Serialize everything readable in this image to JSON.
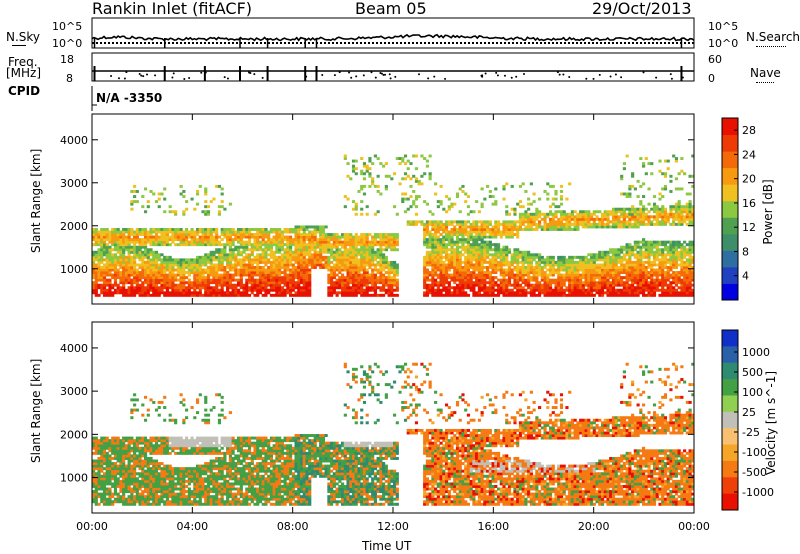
{
  "header": {
    "station": "Rankin Inlet (fitACF)",
    "beam": "Beam 05",
    "date": "29/Oct/2013"
  },
  "noise_panel": {
    "left_label": "N.Sky",
    "right_label": "N.Search",
    "left_ticks": [
      "10^5",
      "10^0"
    ],
    "right_ticks": [
      "10^5",
      "10^0"
    ]
  },
  "freq_panel": {
    "left_label_line1": "Freq.",
    "left_label_line2": "[MHz]",
    "left_ticks": [
      "18",
      "8"
    ],
    "right_ticks": [
      "60",
      "0"
    ],
    "right_label": "Nave"
  },
  "cpid_panel": {
    "label": "CPID",
    "value": "N/A  -3350"
  },
  "colors": {
    "power": [
      "#0000e0",
      "#2040c0",
      "#2e6ea0",
      "#3e8e6a",
      "#4fa050",
      "#8cc840",
      "#f0c020",
      "#f89a10",
      "#f56a08",
      "#ee3a05",
      "#e81000"
    ],
    "velocity_scale": [
      "#e81000",
      "#f0400a",
      "#f57a14",
      "#f5a528",
      "#f8c070",
      "#c0c0b8",
      "#90d050",
      "#44a045",
      "#2e8a70",
      "#2a60a8",
      "#1030c8"
    ]
  },
  "chart_data": [
    {
      "type": "heatmap",
      "title": "",
      "xlabel": "",
      "ylabel": "Slant Range [km]",
      "x_ticks": [
        "00:00",
        "04:00",
        "08:00",
        "12:00",
        "16:00",
        "20:00",
        "00:00"
      ],
      "y_ticks": [
        "1000",
        "2000",
        "3000",
        "4000"
      ],
      "xlim": [
        0,
        24
      ],
      "ylim": [
        180,
        4600
      ],
      "colorbar": {
        "label": "Power [dB]",
        "ticks": [
          "4",
          "8",
          "12",
          "16",
          "20",
          "24",
          "28"
        ],
        "range": [
          0,
          30
        ]
      }
    },
    {
      "type": "heatmap",
      "title": "",
      "xlabel": "Time UT",
      "ylabel": "Slant Range [km]",
      "x_ticks": [
        "00:00",
        "04:00",
        "08:00",
        "12:00",
        "16:00",
        "20:00",
        "00:00"
      ],
      "y_ticks": [
        "1000",
        "2000",
        "3000",
        "4000"
      ],
      "xlim": [
        0,
        24
      ],
      "ylim": [
        180,
        4600
      ],
      "colorbar": {
        "label": "Velocity [m s^-1]",
        "ticks": [
          "1000",
          "500",
          "100",
          "25",
          "-25",
          "-100",
          "-500",
          "-1000"
        ]
      }
    }
  ]
}
